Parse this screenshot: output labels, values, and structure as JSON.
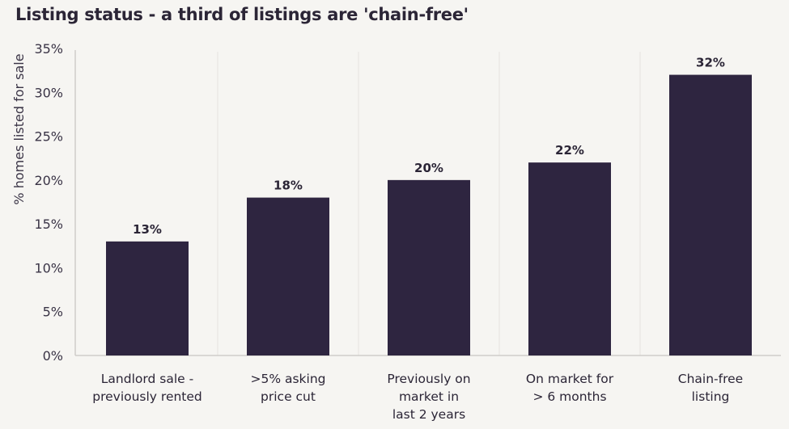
{
  "chart_data": {
    "type": "bar",
    "title": "Listing status - a third of listings are 'chain-free'",
    "xlabel": "",
    "ylabel": "% homes listed for sale",
    "ylim": [
      0,
      35
    ],
    "yticks": [
      "0%",
      "5%",
      "10%",
      "15%",
      "20%",
      "25%",
      "30%",
      "35%"
    ],
    "categories": [
      [
        "Landlord sale -",
        "previously rented"
      ],
      [
        ">5% asking",
        "price cut"
      ],
      [
        "Previously on",
        "market in",
        "last 2 years"
      ],
      [
        "On market for",
        "> 6 months"
      ],
      [
        "Chain-free",
        "listing"
      ]
    ],
    "values": [
      13,
      18,
      20,
      22,
      32
    ],
    "data_labels": [
      "13%",
      "18%",
      "20%",
      "22%",
      "32%"
    ],
    "bar_color": "#2e2540",
    "grid": "vertical separators"
  }
}
